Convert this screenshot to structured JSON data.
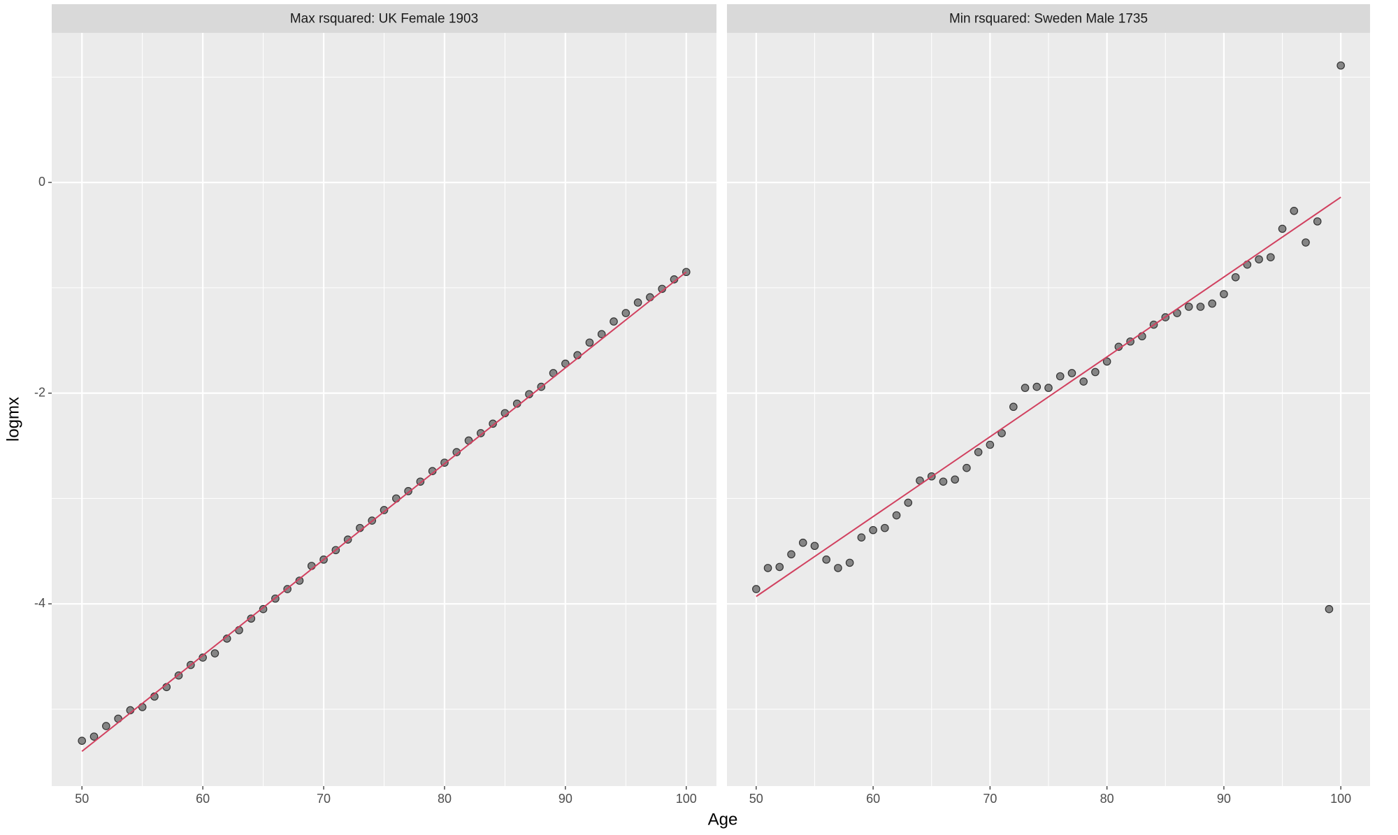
{
  "axis_titles": {
    "x": "Age",
    "y": "logmx"
  },
  "chart_data": [
    {
      "type": "scatter",
      "title": "Max rsquared: UK Female 1903",
      "x": [
        50,
        51,
        52,
        53,
        54,
        55,
        56,
        57,
        58,
        59,
        60,
        61,
        62,
        63,
        64,
        65,
        66,
        67,
        68,
        69,
        70,
        71,
        72,
        73,
        74,
        75,
        76,
        77,
        78,
        79,
        80,
        81,
        82,
        83,
        84,
        85,
        86,
        87,
        88,
        89,
        90,
        91,
        92,
        93,
        94,
        95,
        96,
        97,
        98,
        99,
        100
      ],
      "values": [
        -5.3,
        -5.26,
        -5.16,
        -5.09,
        -5.01,
        -4.98,
        -4.88,
        -4.79,
        -4.68,
        -4.58,
        -4.51,
        -4.47,
        -4.33,
        -4.25,
        -4.14,
        -4.05,
        -3.95,
        -3.86,
        -3.78,
        -3.64,
        -3.58,
        -3.49,
        -3.39,
        -3.28,
        -3.21,
        -3.11,
        -3.0,
        -2.93,
        -2.84,
        -2.74,
        -2.66,
        -2.56,
        -2.45,
        -2.38,
        -2.29,
        -2.19,
        -2.1,
        -2.01,
        -1.94,
        -1.81,
        -1.72,
        -1.64,
        -1.52,
        -1.44,
        -1.32,
        -1.24,
        -1.14,
        -1.09,
        -1.01,
        -0.92,
        -0.85
      ],
      "color": "#7a7a7a",
      "fit": {
        "x": [
          50,
          100
        ],
        "values": [
          -5.4,
          -0.85
        ],
        "color": "#d1405f"
      },
      "xlim": [
        47.5,
        102.5
      ],
      "xticks": [
        50,
        60,
        70,
        80,
        90,
        100
      ],
      "xminor": [
        55,
        65,
        75,
        85,
        95
      ],
      "ylim": [
        -5.73,
        1.42
      ],
      "yticks": [
        -4,
        -2,
        0
      ],
      "yminor": [
        -5,
        -3,
        -1,
        1
      ],
      "grid": true
    },
    {
      "type": "scatter",
      "title": "Min rsquared: Sweden Male 1735",
      "x": [
        50,
        51,
        52,
        53,
        54,
        55,
        56,
        57,
        58,
        59,
        60,
        61,
        62,
        63,
        64,
        65,
        66,
        67,
        68,
        69,
        70,
        71,
        72,
        73,
        74,
        75,
        76,
        77,
        78,
        79,
        80,
        81,
        82,
        83,
        84,
        85,
        86,
        87,
        88,
        89,
        90,
        91,
        92,
        93,
        94,
        95,
        96,
        97,
        98,
        99,
        100
      ],
      "values": [
        -3.86,
        -3.66,
        -3.65,
        -3.53,
        -3.42,
        -3.45,
        -3.58,
        -3.66,
        -3.61,
        -3.37,
        -3.3,
        -3.28,
        -3.16,
        -3.04,
        -2.83,
        -2.79,
        -2.84,
        -2.82,
        -2.71,
        -2.56,
        -2.49,
        -2.38,
        -2.13,
        -1.95,
        -1.94,
        -1.95,
        -1.84,
        -1.81,
        -1.89,
        -1.8,
        -1.7,
        -1.56,
        -1.51,
        -1.46,
        -1.35,
        -1.28,
        -1.24,
        -1.18,
        -1.18,
        -1.15,
        -1.06,
        -0.9,
        -0.78,
        -0.73,
        -0.71,
        -0.44,
        -0.27,
        -0.57,
        -0.37,
        -4.05,
        1.11
      ],
      "color": "#7a7a7a",
      "fit": {
        "x": [
          50,
          100
        ],
        "values": [
          -3.93,
          -0.14
        ],
        "color": "#d1405f"
      },
      "xlim": [
        47.5,
        102.5
      ],
      "xticks": [
        50,
        60,
        70,
        80,
        90,
        100
      ],
      "xminor": [
        55,
        65,
        75,
        85,
        95
      ],
      "ylim": [
        -5.73,
        1.42
      ],
      "yticks": [
        -4,
        -2,
        0
      ],
      "yminor": [
        -5,
        -3,
        -1,
        1
      ],
      "grid": true
    }
  ]
}
